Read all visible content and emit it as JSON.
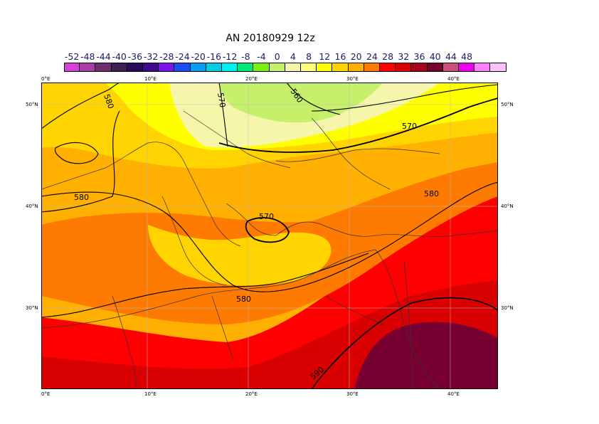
{
  "title": "AN  20180929 12z",
  "colorbar": {
    "labels": [
      "-52",
      "-48",
      "-44",
      "-40",
      "-36",
      "-32",
      "-28",
      "-24",
      "-20",
      "-16",
      "-12",
      "-8",
      "-4",
      "0",
      "4",
      "8",
      "12",
      "16",
      "20",
      "24",
      "28",
      "32",
      "36",
      "40",
      "44",
      "48"
    ],
    "colors": [
      "#d83ed8",
      "#a83ea8",
      "#6e2e6e",
      "#3c2052",
      "#2a0a5a",
      "#400a8c",
      "#7a14e8",
      "#1a4ef2",
      "#0a9cf0",
      "#04cce4",
      "#00f0f0",
      "#00e87a",
      "#7aee10",
      "#c6f06a",
      "#f6f6aa",
      "#ffff78",
      "#ffff00",
      "#ffd400",
      "#ffb000",
      "#ff7a00",
      "#ff0000",
      "#d80000",
      "#a80020",
      "#780030",
      "#c8507a",
      "#ee00ee",
      "#ff80ff",
      "#ffc0ff"
    ]
  },
  "axes": {
    "lon_labels": [
      "0°E",
      "10°E",
      "20°E",
      "30°E",
      "40°E"
    ],
    "lat_labels": [
      "50°N",
      "40°N",
      "30°N"
    ]
  },
  "contour_labels": [
    "580",
    "570",
    "560",
    "570",
    "580",
    "580",
    "570",
    "580",
    "590"
  ]
}
